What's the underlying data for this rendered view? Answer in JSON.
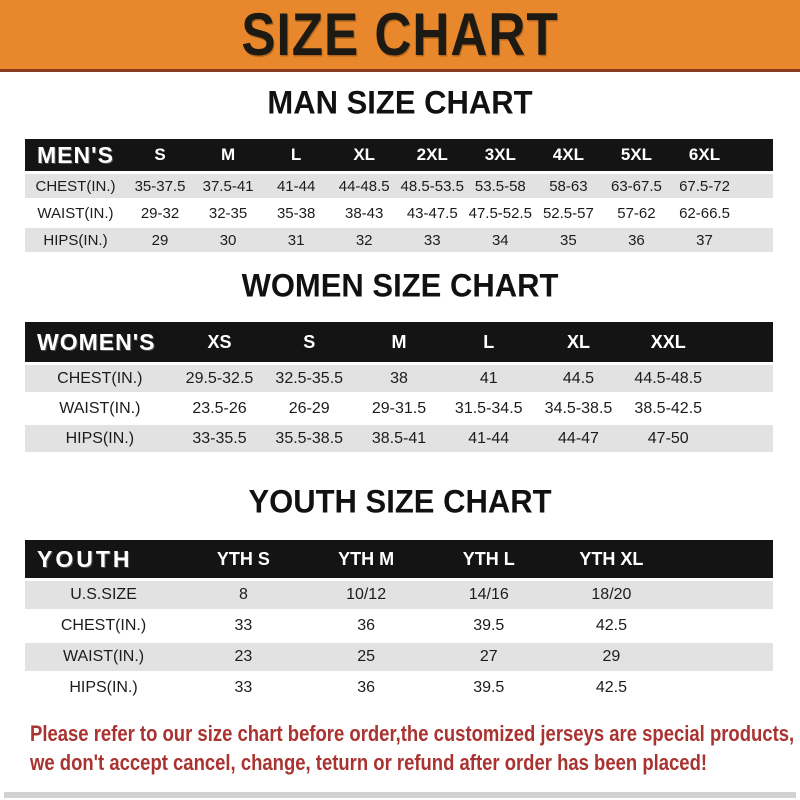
{
  "banner": {
    "title": "SIZE CHART"
  },
  "sections": [
    {
      "heading": "MAN SIZE CHART",
      "label": "MEN'S",
      "columns": [
        "S",
        "M",
        "L",
        "XL",
        "2XL",
        "3XL",
        "4XL",
        "5XL",
        "6XL"
      ],
      "rows": [
        {
          "label": "CHEST(IN.)",
          "values": [
            "35-37.5",
            "37.5-41",
            "41-44",
            "44-48.5",
            "48.5-53.5",
            "53.5-58",
            "58-63",
            "63-67.5",
            "67.5-72"
          ]
        },
        {
          "label": "WAIST(IN.)",
          "values": [
            "29-32",
            "32-35",
            "35-38",
            "38-43",
            "43-47.5",
            "47.5-52.5",
            "52.5-57",
            "57-62",
            "62-66.5"
          ]
        },
        {
          "label": "HIPS(IN.)",
          "values": [
            "29",
            "30",
            "31",
            "32",
            "33",
            "34",
            "35",
            "36",
            "37"
          ]
        }
      ]
    },
    {
      "heading": "WOMEN SIZE CHART",
      "label": "WOMEN'S",
      "columns": [
        "XS",
        "S",
        "M",
        "L",
        "XL",
        "XXL"
      ],
      "rows": [
        {
          "label": "CHEST(IN.)",
          "values": [
            "29.5-32.5",
            "32.5-35.5",
            "38",
            "41",
            "44.5",
            "44.5-48.5"
          ]
        },
        {
          "label": "WAIST(IN.)",
          "values": [
            "23.5-26",
            "26-29",
            "29-31.5",
            "31.5-34.5",
            "34.5-38.5",
            "38.5-42.5"
          ]
        },
        {
          "label": "HIPS(IN.)",
          "values": [
            "33-35.5",
            "35.5-38.5",
            "38.5-41",
            "41-44",
            "44-47",
            "47-50"
          ]
        }
      ]
    },
    {
      "heading": "YOUTH SIZE CHART",
      "label": "YOUTH",
      "columns": [
        "YTH S",
        "YTH M",
        "YTH L",
        "YTH XL"
      ],
      "rows": [
        {
          "label": "U.S.SIZE",
          "values": [
            "8",
            "10/12",
            "14/16",
            "18/20"
          ]
        },
        {
          "label": "CHEST(IN.)",
          "values": [
            "33",
            "36",
            "39.5",
            "42.5"
          ]
        },
        {
          "label": "WAIST(IN.)",
          "values": [
            "23",
            "25",
            "27",
            "29"
          ]
        },
        {
          "label": "HIPS(IN.)",
          "values": [
            "33",
            "36",
            "39.5",
            "42.5"
          ]
        }
      ]
    }
  ],
  "footer": {
    "line1": "Please refer to our size chart before order,the customized jerseys are special products,",
    "line2": "we don't accept cancel, change, teturn or refund after order has been placed!"
  },
  "colors": {
    "banner_orange": "#E8872B",
    "banner_underline": "#8A3A20",
    "table_header_black": "#141414",
    "row_gray": "#E2E2E2",
    "footer_red": "#A93330"
  }
}
